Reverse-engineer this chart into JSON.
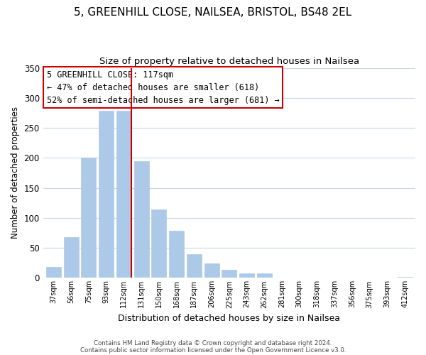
{
  "title": "5, GREENHILL CLOSE, NAILSEA, BRISTOL, BS48 2EL",
  "subtitle": "Size of property relative to detached houses in Nailsea",
  "xlabel": "Distribution of detached houses by size in Nailsea",
  "ylabel": "Number of detached properties",
  "bar_labels": [
    "37sqm",
    "56sqm",
    "75sqm",
    "93sqm",
    "112sqm",
    "131sqm",
    "150sqm",
    "168sqm",
    "187sqm",
    "206sqm",
    "225sqm",
    "243sqm",
    "262sqm",
    "281sqm",
    "300sqm",
    "318sqm",
    "337sqm",
    "356sqm",
    "375sqm",
    "393sqm",
    "412sqm"
  ],
  "bar_values": [
    18,
    68,
    200,
    278,
    278,
    195,
    114,
    79,
    40,
    24,
    14,
    7,
    7,
    1,
    1,
    1,
    1,
    1,
    1,
    1,
    2
  ],
  "highlight_index": 4,
  "bar_color": "#adc9e8",
  "highlight_line_color": "#cc0000",
  "ylim": [
    0,
    350
  ],
  "yticks": [
    0,
    50,
    100,
    150,
    200,
    250,
    300,
    350
  ],
  "annotation_text": "5 GREENHILL CLOSE: 117sqm\n← 47% of detached houses are smaller (618)\n52% of semi-detached houses are larger (681) →",
  "footer1": "Contains HM Land Registry data © Crown copyright and database right 2024.",
  "footer2": "Contains public sector information licensed under the Open Government Licence v3.0.",
  "bg_color": "#ffffff",
  "grid_color": "#c8d8ec",
  "title_fontsize": 11,
  "subtitle_fontsize": 9.5,
  "ann_fontsize": 8.5,
  "ylabel_fontsize": 8.5,
  "xlabel_fontsize": 9
}
